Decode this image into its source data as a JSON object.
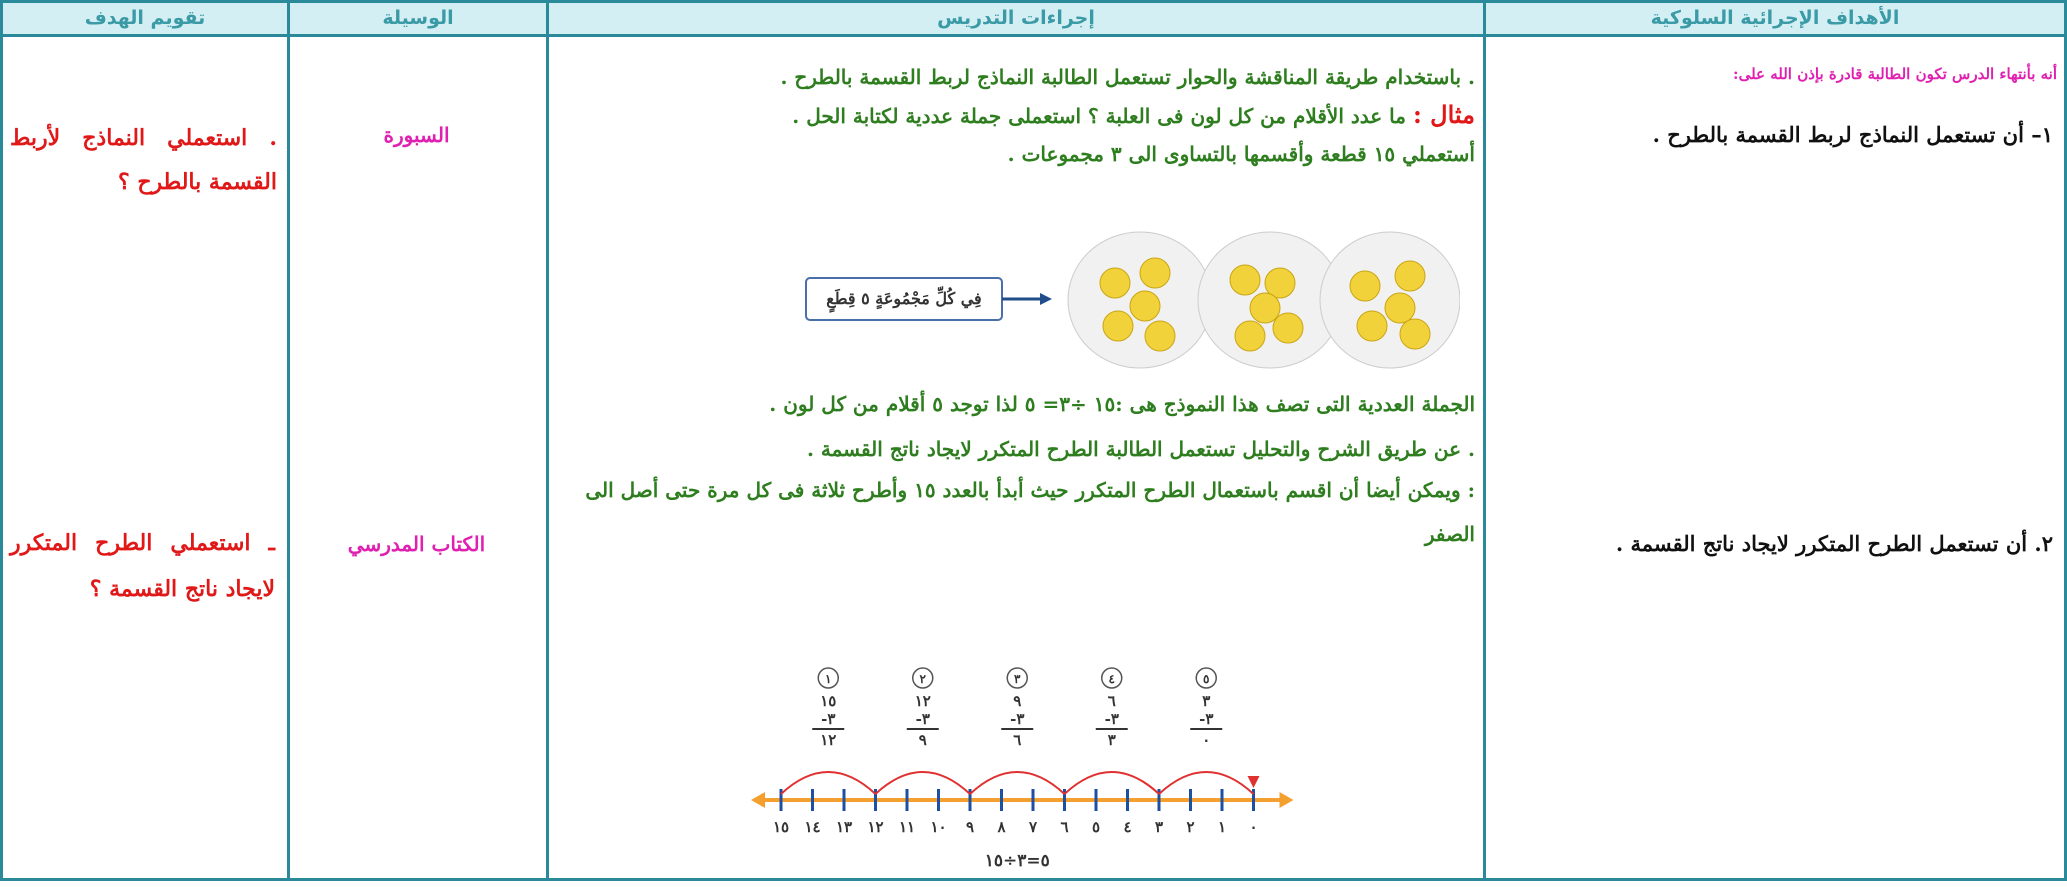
{
  "table": {
    "headers": [
      "الأهداف الإجرائية السلوكية",
      "إجراءات التدريس",
      "الوسيلة",
      "تقويم الهدف"
    ],
    "objectives": {
      "intro": "أنه بأنتهاء الدرس تكون الطالبة قادرة بإذن الله على:",
      "items": [
        "١– أن تستعمل النماذج لربط القسمة بالطرح .",
        "٢. أن تستعمل الطرح المتكرر لايجاد ناتج القسمة ."
      ]
    },
    "procedures": {
      "intro": ". باستخدام طريقة المناقشة والحوار تستعمل الطالبة النماذج لربط القسمة بالطرح .",
      "example_label": "مثال :",
      "example_text": "ما عدد الأقلام من كل لون فى العلبة ؟ استعملى جملة عددية لكتابة الحل .",
      "instruction": "أستعملي ١٥ قطعة وأقسمها بالتساوى الى ٣ مجموعات .",
      "figure_box": "فِي كُلِّ مَجْمُوعَةٍ ٥ قِطَعٍ",
      "sentence": "الجملة العددية التى تصف هذا النموذج هى :١٥ ÷٣= ٥      لذا توجد ٥ أقلام من كل لون .",
      "method": ". عن طريق الشرح والتحليل تستعمل الطالبة الطرح المتكرر لايجاد ناتج القسمة .",
      "repeated": ": ويمكن أيضا أن اقسم باستعمال الطرح المتكرر حيث أبدأ بالعدد ١٥ وأطرح ثلاثة فى كل مرة حتى أصل الى الصفر",
      "steps": [
        {
          "n": "١",
          "top": "١٥",
          "sub": "٣-",
          "res": "١٢"
        },
        {
          "n": "٢",
          "top": "١٢",
          "sub": "٣-",
          "res": "٩"
        },
        {
          "n": "٣",
          "top": "٩",
          "sub": "٣-",
          "res": "٦"
        },
        {
          "n": "٤",
          "top": "٦",
          "sub": "٣-",
          "res": "٣"
        },
        {
          "n": "٥",
          "top": "٣",
          "sub": "٣-",
          "res": "٠"
        }
      ],
      "number_line": [
        "١٥",
        "١٤",
        "١٣",
        "١٢",
        "١١",
        "١٠",
        "٩",
        "٨",
        "٧",
        "٦",
        "٥",
        "٤",
        "٣",
        "٢",
        "١",
        "٠"
      ],
      "equation": "٥=٣÷١٥"
    },
    "tools": [
      "السبورة",
      "الكتاب المدرسي"
    ],
    "evaluation": [
      ". استعملي النماذج لأربط القسمة بالطرح ؟",
      "ـ استعملي الطرح المتكرر لايجاد ناتج القسمة ؟"
    ]
  }
}
